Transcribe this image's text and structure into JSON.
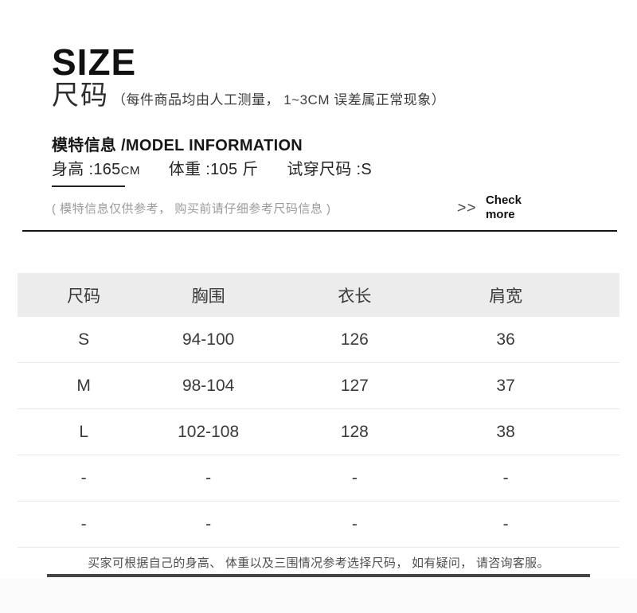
{
  "header": {
    "title_en": "SIZE",
    "title_cn": "尺码",
    "measure_note": "（每件商品均由人工测量， 1~3CM 误差属正常现象）"
  },
  "model_info": {
    "heading_cn": "模特信息",
    "heading_en": " /MODEL INFORMATION",
    "height_label": "身高 :",
    "height_value": "165",
    "height_unit": "CM",
    "weight_label": "体重 :",
    "weight_value": "105 斤",
    "fit_label": "试穿尺码 :",
    "fit_value": "S",
    "disclaimer": "( 模特信息仅供参考， 购买前请仔细参考尺码信息 )",
    "check_more": {
      "icon": "double-chevron-right",
      "icon_glyph": ">>",
      "label": "Check\nmore"
    }
  },
  "size_table": {
    "headers": [
      "尺码",
      "胸围",
      "衣长",
      "肩宽"
    ],
    "rows": [
      [
        "S",
        "94-100",
        "126",
        "36"
      ],
      [
        "M",
        "98-104",
        "127",
        "37"
      ],
      [
        "L",
        "102-108",
        "128",
        "38"
      ],
      [
        "-",
        "-",
        "-",
        "-"
      ],
      [
        "-",
        "-",
        "-",
        "-"
      ]
    ]
  },
  "footer": {
    "note": "买家可根据自己的身高、 体重以及三围情况参考选择尺码， 如有疑问， 请咨询客服。"
  },
  "colors": {
    "text_primary": "#1f1f1f",
    "text_secondary": "#9b9b9b",
    "table_text": "#3a3a3a",
    "table_header_bg": "#ececec",
    "row_divider": "#e8e8e8",
    "section_divider": "#151515",
    "footer_rule": "#454545"
  }
}
